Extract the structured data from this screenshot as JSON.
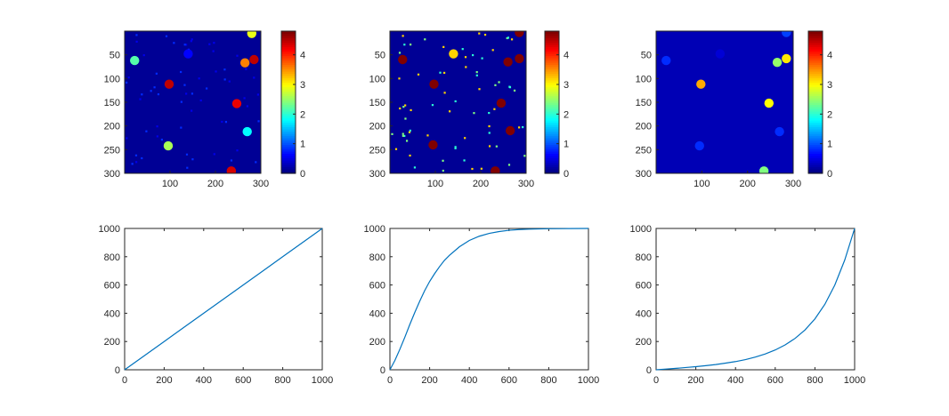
{
  "figure": {
    "background": "#ffffff"
  },
  "chart_data": [
    {
      "type": "heatmap",
      "panel": "top-left",
      "colormap": "jet",
      "image_size": [
        300,
        300
      ],
      "xticks": [
        100,
        200,
        300
      ],
      "yticks": [
        50,
        100,
        150,
        200,
        250,
        300
      ],
      "colorbar": {
        "ticks": [
          0,
          1,
          2,
          3,
          4
        ],
        "range": [
          0,
          4.8
        ]
      },
      "background_value": 0.1,
      "blobs": [
        {
          "x": 280,
          "y": 5,
          "v": 2.9
        },
        {
          "x": 22,
          "y": 62,
          "v": 2.2
        },
        {
          "x": 140,
          "y": 48,
          "v": 0.6
        },
        {
          "x": 265,
          "y": 67,
          "v": 3.6
        },
        {
          "x": 285,
          "y": 60,
          "v": 4.5
        },
        {
          "x": 98,
          "y": 112,
          "v": 4.5
        },
        {
          "x": 247,
          "y": 153,
          "v": 4.3
        },
        {
          "x": 270,
          "y": 212,
          "v": 1.8
        },
        {
          "x": 96,
          "y": 242,
          "v": 2.6
        },
        {
          "x": 235,
          "y": 295,
          "v": 4.4
        }
      ],
      "noise": {
        "count": 60,
        "values": [
          0.5,
          0.8
        ],
        "seed": 7
      }
    },
    {
      "type": "heatmap",
      "panel": "top-middle",
      "colormap": "jet",
      "image_size": [
        300,
        300
      ],
      "xticks": [
        100,
        200,
        300
      ],
      "yticks": [
        50,
        100,
        150,
        200,
        250,
        300
      ],
      "colorbar": {
        "ticks": [
          0,
          1,
          2,
          3,
          4
        ],
        "range": [
          0,
          4.8
        ]
      },
      "background_value": 0.1,
      "blobs": [
        {
          "x": 285,
          "y": 3,
          "v": 4.8
        },
        {
          "x": 140,
          "y": 48,
          "v": 3.2
        },
        {
          "x": 28,
          "y": 60,
          "v": 4.8
        },
        {
          "x": 260,
          "y": 65,
          "v": 4.8
        },
        {
          "x": 285,
          "y": 58,
          "v": 4.8
        },
        {
          "x": 97,
          "y": 112,
          "v": 4.8
        },
        {
          "x": 245,
          "y": 152,
          "v": 4.8
        },
        {
          "x": 265,
          "y": 210,
          "v": 4.8
        },
        {
          "x": 95,
          "y": 240,
          "v": 4.8
        },
        {
          "x": 232,
          "y": 295,
          "v": 4.8
        }
      ],
      "noise": {
        "count": 70,
        "values": [
          3.2,
          2.4,
          2.0
        ],
        "seed": 13
      }
    },
    {
      "type": "heatmap",
      "panel": "top-right",
      "colormap": "jet",
      "image_size": [
        300,
        300
      ],
      "xticks": [
        100,
        200,
        300
      ],
      "yticks": [
        50,
        100,
        150,
        200,
        250,
        300
      ],
      "colorbar": {
        "ticks": [
          0,
          1,
          2,
          3,
          4
        ],
        "range": [
          0,
          4.8
        ]
      },
      "background_value": 0.25,
      "blobs": [
        {
          "x": 285,
          "y": 3,
          "v": 0.9
        },
        {
          "x": 140,
          "y": 48,
          "v": 0.4
        },
        {
          "x": 22,
          "y": 62,
          "v": 0.8
        },
        {
          "x": 265,
          "y": 66,
          "v": 2.5
        },
        {
          "x": 285,
          "y": 58,
          "v": 3.1
        },
        {
          "x": 98,
          "y": 112,
          "v": 3.4
        },
        {
          "x": 247,
          "y": 152,
          "v": 3.0
        },
        {
          "x": 270,
          "y": 212,
          "v": 0.8
        },
        {
          "x": 95,
          "y": 242,
          "v": 0.8
        },
        {
          "x": 236,
          "y": 295,
          "v": 2.4
        }
      ],
      "noise": {
        "count": 0,
        "values": [],
        "seed": 3
      }
    },
    {
      "type": "line",
      "panel": "bottom-left",
      "color": "#0072bd",
      "xlim": [
        0,
        1000
      ],
      "ylim": [
        0,
        1000
      ],
      "xticks": [
        0,
        200,
        400,
        600,
        800,
        1000
      ],
      "yticks": [
        0,
        200,
        400,
        600,
        800,
        1000
      ],
      "x": [
        0,
        100,
        200,
        300,
        400,
        500,
        600,
        700,
        800,
        900,
        1000
      ],
      "y": [
        0,
        100,
        200,
        300,
        400,
        500,
        600,
        700,
        800,
        900,
        1000
      ]
    },
    {
      "type": "line",
      "panel": "bottom-middle",
      "color": "#0072bd",
      "xlim": [
        0,
        1000
      ],
      "ylim": [
        0,
        1000
      ],
      "xticks": [
        0,
        200,
        400,
        600,
        800,
        1000
      ],
      "yticks": [
        0,
        200,
        400,
        600,
        800,
        1000
      ],
      "x": [
        0,
        25,
        50,
        75,
        100,
        125,
        150,
        175,
        200,
        225,
        250,
        275,
        300,
        350,
        400,
        450,
        500,
        550,
        600,
        650,
        700,
        800,
        900,
        1000
      ],
      "y": [
        0,
        66,
        145,
        230,
        320,
        405,
        485,
        560,
        625,
        680,
        730,
        775,
        810,
        870,
        915,
        945,
        965,
        978,
        987,
        992,
        995,
        998,
        999,
        1000
      ]
    },
    {
      "type": "line",
      "panel": "bottom-right",
      "color": "#0072bd",
      "xlim": [
        0,
        1000
      ],
      "ylim": [
        0,
        1000
      ],
      "xticks": [
        0,
        200,
        400,
        600,
        800,
        1000
      ],
      "yticks": [
        0,
        200,
        400,
        600,
        800,
        1000
      ],
      "x": [
        0,
        50,
        100,
        150,
        200,
        250,
        300,
        350,
        400,
        450,
        500,
        550,
        600,
        650,
        700,
        750,
        800,
        850,
        900,
        950,
        1000
      ],
      "y": [
        0,
        5,
        10,
        16,
        22,
        29,
        37,
        47,
        58,
        72,
        90,
        112,
        140,
        176,
        222,
        282,
        360,
        463,
        599,
        776,
        1000
      ]
    }
  ]
}
